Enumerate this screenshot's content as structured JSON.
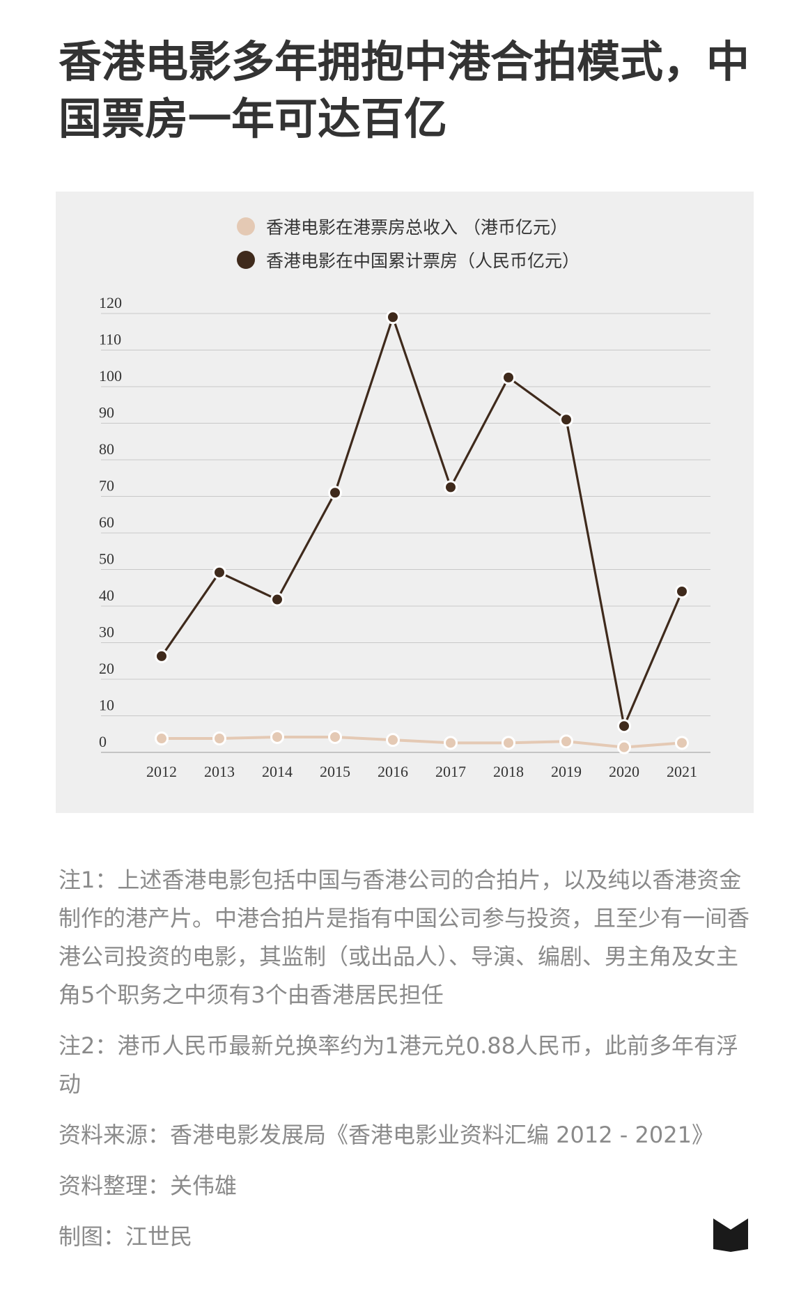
{
  "title": "香港电影多年拥抱中港合拍模式，中国票房一年可达百亿",
  "colors": {
    "hk_series": "#e4c9b4",
    "cn_series": "#3f2a1c",
    "panel_bg": "#efefef",
    "grid": "#c8c8c8",
    "title": "#333333",
    "notes": "#8a8a8a"
  },
  "chart_data": {
    "type": "line",
    "x": [
      "2012",
      "2013",
      "2014",
      "2015",
      "2016",
      "2017",
      "2018",
      "2019",
      "2020",
      "2021"
    ],
    "yticks": [
      "0",
      "10",
      "20",
      "30",
      "40",
      "50",
      "60",
      "70",
      "80",
      "90",
      "100",
      "110",
      "120"
    ],
    "ylim": [
      0,
      120
    ],
    "grid": true,
    "legend_position": "top-center",
    "series": [
      {
        "name": "香港电影在港票房总收入 （港币亿元）",
        "color": "#e4c9b4",
        "values": [
          3.8,
          3.8,
          4.2,
          4.2,
          3.4,
          2.6,
          2.6,
          3.0,
          1.4,
          2.6
        ]
      },
      {
        "name": "香港电影在中国累计票房（人民币亿元）",
        "color": "#3f2a1c",
        "values": [
          26.3,
          49.2,
          41.8,
          71.0,
          119.0,
          72.5,
          102.5,
          91.0,
          7.2,
          44.0
        ]
      }
    ]
  },
  "notes": {
    "note1": "注1：上述香港电影包括中国与香港公司的合拍片，以及纯以香港资金制作的港产片。中港合拍片是指有中国公司参与投资，且至少有一间香港公司投资的电影，其监制（或出品人）、导演、编剧、男主角及女主角5个职务之中须有3个由香港居民担任",
    "note2": "注2：港币人民币最新兑换率约为1港元兑0.88人民币，此前多年有浮动",
    "source": "资料来源：香港电影发展局《香港电影业资料汇编 2012 - 2021》",
    "compiled": "资料整理：关伟雄",
    "graphic": "制图：江世民"
  },
  "logo_icon": "book-logo-icon"
}
